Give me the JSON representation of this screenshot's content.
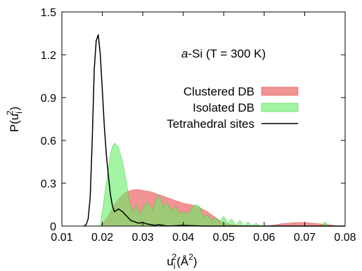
{
  "chart_data": {
    "type": "area",
    "title": "",
    "xlabel": "u",
    "xlabel_sub": "i",
    "xlabel_sup": "2",
    "xlabel_unit": "(Å",
    "xlabel_unit_sup": "2",
    "xlabel_unit_end": ")",
    "ylabel": "P(u",
    "ylabel_sub": "i",
    "ylabel_sup": "2",
    "ylabel_end": ")",
    "xlim": [
      0.01,
      0.08
    ],
    "ylim": [
      0,
      1.5
    ],
    "xticks": [
      "0.01",
      "0.02",
      "0.03",
      "0.04",
      "0.05",
      "0.06",
      "0.07",
      "0.08"
    ],
    "yticks": [
      "0",
      "0.3",
      "0.6",
      "0.9",
      "1.2",
      "1.5"
    ],
    "annotation": {
      "italic": "a",
      "rest": "-Si (T = 300 K)"
    },
    "legend_position": "right",
    "series": [
      {
        "name": "Clustered DB",
        "style": "filled",
        "color": "#f08080",
        "edge_color": "#e05555",
        "x": [
          0.0195,
          0.02,
          0.021,
          0.022,
          0.023,
          0.024,
          0.025,
          0.026,
          0.027,
          0.028,
          0.029,
          0.03,
          0.031,
          0.032,
          0.033,
          0.034,
          0.035,
          0.036,
          0.037,
          0.038,
          0.039,
          0.04,
          0.041,
          0.042,
          0.043,
          0.044,
          0.045,
          0.046,
          0.047,
          0.048,
          0.049,
          0.05,
          0.052,
          0.054,
          0.056,
          0.058,
          0.06,
          0.062,
          0.064,
          0.066,
          0.068,
          0.07,
          0.072,
          0.074,
          0.076,
          0.078
        ],
        "y": [
          0.0,
          0.02,
          0.05,
          0.1,
          0.15,
          0.19,
          0.22,
          0.24,
          0.25,
          0.255,
          0.255,
          0.25,
          0.245,
          0.24,
          0.23,
          0.22,
          0.21,
          0.2,
          0.19,
          0.18,
          0.17,
          0.16,
          0.155,
          0.15,
          0.14,
          0.13,
          0.115,
          0.1,
          0.08,
          0.06,
          0.04,
          0.02,
          0.01,
          0.005,
          0.0,
          0.0,
          0.0,
          0.005,
          0.015,
          0.02,
          0.025,
          0.025,
          0.02,
          0.015,
          0.01,
          0.0
        ]
      },
      {
        "name": "Isolated DB",
        "style": "filled",
        "color": "#66ee66",
        "edge_color": "#33cc33",
        "x": [
          0.0195,
          0.02,
          0.021,
          0.022,
          0.0225,
          0.023,
          0.0235,
          0.024,
          0.0245,
          0.025,
          0.0255,
          0.026,
          0.0265,
          0.027,
          0.0275,
          0.028,
          0.0285,
          0.029,
          0.0295,
          0.03,
          0.031,
          0.032,
          0.0325,
          0.033,
          0.034,
          0.035,
          0.036,
          0.037,
          0.038,
          0.039,
          0.04,
          0.041,
          0.042,
          0.043,
          0.044,
          0.045,
          0.046,
          0.047,
          0.048,
          0.049,
          0.05,
          0.051,
          0.052,
          0.053,
          0.054,
          0.055,
          0.056,
          0.057,
          0.058,
          0.059,
          0.074,
          0.075,
          0.076
        ],
        "y": [
          0.0,
          0.1,
          0.3,
          0.5,
          0.56,
          0.58,
          0.57,
          0.55,
          0.5,
          0.45,
          0.38,
          0.3,
          0.2,
          0.14,
          0.1,
          0.12,
          0.15,
          0.1,
          0.08,
          0.12,
          0.17,
          0.13,
          0.11,
          0.16,
          0.22,
          0.13,
          0.17,
          0.1,
          0.14,
          0.09,
          0.1,
          0.08,
          0.12,
          0.15,
          0.14,
          0.06,
          0.08,
          0.04,
          0.06,
          0.03,
          0.07,
          0.02,
          0.05,
          0.0,
          0.04,
          0.0,
          0.03,
          0.0,
          0.02,
          0.0,
          0.0,
          0.03,
          0.0
        ]
      },
      {
        "name": "Tetrahedral sites",
        "style": "line",
        "color": "#000000",
        "x": [
          0.0155,
          0.016,
          0.0165,
          0.017,
          0.0175,
          0.018,
          0.0185,
          0.019,
          0.0195,
          0.02,
          0.0205,
          0.021,
          0.0215,
          0.022,
          0.0225,
          0.023,
          0.024,
          0.025,
          0.026,
          0.027,
          0.028,
          0.029,
          0.03,
          0.031,
          0.032,
          0.033,
          0.034,
          0.035,
          0.036,
          0.04,
          0.045,
          0.05,
          0.08
        ],
        "y": [
          0.0,
          0.01,
          0.05,
          0.2,
          0.6,
          1.1,
          1.3,
          1.34,
          1.2,
          0.95,
          0.7,
          0.5,
          0.35,
          0.22,
          0.14,
          0.1,
          0.12,
          0.1,
          0.07,
          0.04,
          0.03,
          0.02,
          0.025,
          0.015,
          0.01,
          0.005,
          0.01,
          0.005,
          0.0,
          0.005,
          0.0,
          0.0,
          0.0
        ]
      }
    ]
  }
}
